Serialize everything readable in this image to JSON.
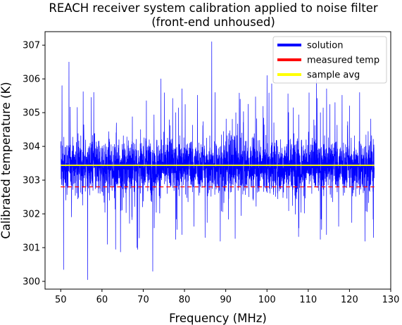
{
  "chart_data": {
    "type": "line",
    "title": "REACH receiver system calibration applied to noise filter",
    "subtitle": "(front-end unhoused)",
    "xlabel": "Frequency (MHz)",
    "ylabel": "Calibrated temperature (K)",
    "xlim": [
      46.2,
      130.0
    ],
    "ylim": [
      299.77,
      307.4
    ],
    "xticks": [
      50,
      60,
      70,
      80,
      90,
      100,
      110,
      120,
      130
    ],
    "yticks": [
      300,
      301,
      302,
      303,
      304,
      305,
      306,
      307
    ],
    "grid": false,
    "legend_position": "top-right",
    "series": [
      {
        "name": "solution",
        "color": "#0000ff",
        "style": "solid",
        "x_range": [
          50,
          126
        ],
        "center": 303.42,
        "typical_band": [
          302.2,
          304.7
        ],
        "peaks": [
          {
            "x": 50.3,
            "y": 305.8
          },
          {
            "x": 52.0,
            "y": 306.5
          },
          {
            "x": 56.5,
            "y": 300.05
          },
          {
            "x": 50.7,
            "y": 300.35
          },
          {
            "x": 58.0,
            "y": 305.6
          },
          {
            "x": 61.3,
            "y": 301.1
          },
          {
            "x": 63.3,
            "y": 300.95
          },
          {
            "x": 68.5,
            "y": 301.0
          },
          {
            "x": 72.3,
            "y": 300.3
          },
          {
            "x": 74.3,
            "y": 306.0
          },
          {
            "x": 86.6,
            "y": 307.1
          },
          {
            "x": 93.5,
            "y": 305.4
          },
          {
            "x": 100.0,
            "y": 306.1
          },
          {
            "x": 112.0,
            "y": 306.0
          },
          {
            "x": 116.5,
            "y": 305.3
          },
          {
            "x": 120.0,
            "y": 305.2
          },
          {
            "x": 125.8,
            "y": 301.3
          },
          {
            "x": 85.0,
            "y": 301.3
          }
        ]
      },
      {
        "name": "measured temp",
        "color": "#ff0000",
        "style": "dashed",
        "x": [
          50,
          126
        ],
        "y": [
          302.8,
          302.8
        ]
      },
      {
        "name": "sample avg",
        "color": "#ffff00",
        "style": "solid",
        "x": [
          50,
          126
        ],
        "y": [
          303.44,
          303.44
        ]
      }
    ]
  }
}
